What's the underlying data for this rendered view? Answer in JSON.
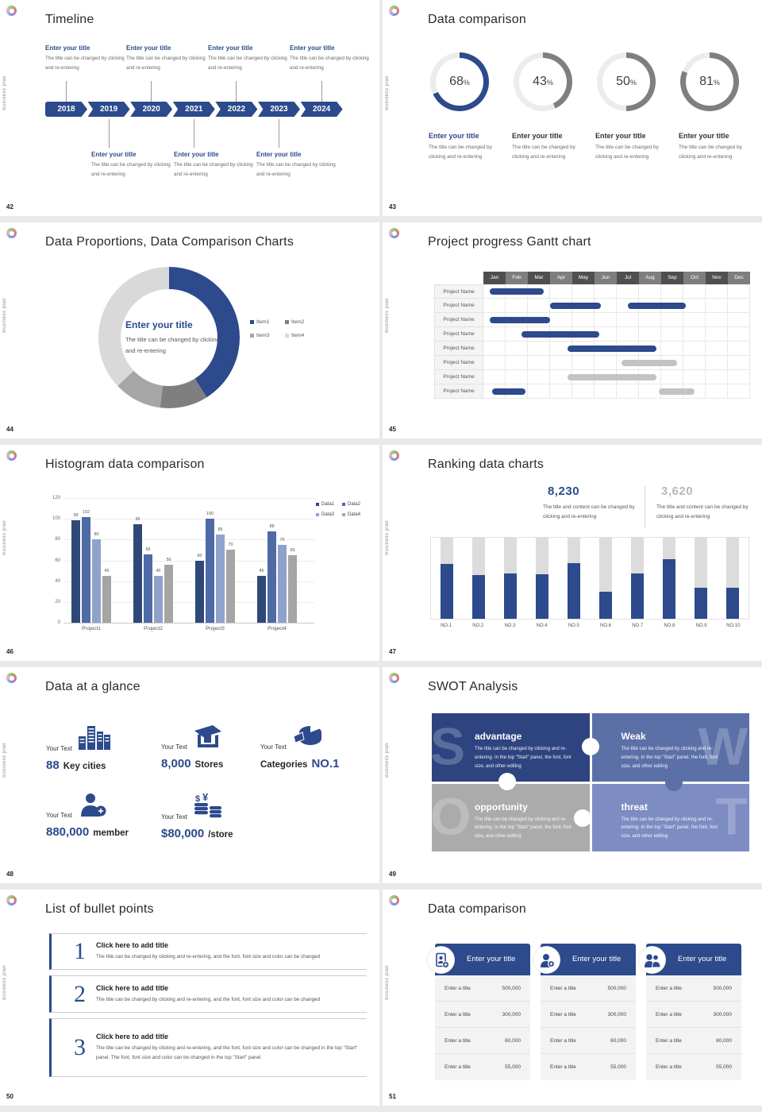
{
  "sidebar_text": "Business plan",
  "colors": {
    "primary": "#2C4A8C",
    "ring_gray": "#7F7F7F",
    "ring_track": "#ECECEC",
    "gantt_gray": "#C3C3C3",
    "rank_track": "#DCDCDC",
    "pie": [
      "#2C4A8C",
      "#7F7F7F",
      "#A6A6A6",
      "#D9D9D9"
    ],
    "histogram": [
      "#2E4977",
      "#4E6BA6",
      "#8FA2CB",
      "#A5A5A5"
    ],
    "swot": [
      "#2E4480",
      "#5C70A8",
      "#ABABAB",
      "#7D8CC2"
    ],
    "month_dark": "#4F4F4F",
    "month_light": "#7E7E7E"
  },
  "slides": {
    "timeline": {
      "number": "42",
      "title": "Timeline",
      "entry_title": "Enter your title",
      "entry_body": "The title can be changed by clicking and re-entering",
      "years": [
        "2018",
        "2019",
        "2020",
        "2021",
        "2022",
        "2023",
        "2024"
      ]
    },
    "donuts": {
      "number": "43",
      "title": "Data comparison",
      "entry_title": "Enter your title",
      "entry_body": "The title can be changed by clicking and re-entering",
      "percent_suffix": "%",
      "items": [
        {
          "percent": 68,
          "accent": true
        },
        {
          "percent": 43,
          "accent": false
        },
        {
          "percent": 50,
          "accent": false
        },
        {
          "percent": 81,
          "accent": false
        }
      ]
    },
    "proportions": {
      "number": "44",
      "title": "Data Proportions, Data Comparison Charts",
      "center_title": "Enter your title",
      "center_body": "The title can be changed by clicking and re-entering",
      "legend": [
        "Item1",
        "Item2",
        "Item3",
        "Item4"
      ],
      "segments": [
        41,
        11,
        11,
        37
      ]
    },
    "gantt": {
      "number": "45",
      "title": "Project progress Gantt chart",
      "months": [
        "Jan",
        "Feb",
        "Mar",
        "Apr",
        "May",
        "Jun",
        "Jul",
        "Aug",
        "Sep",
        "Oct",
        "Nov",
        "Dec"
      ],
      "row_label": "Project Name",
      "rows": [
        [
          {
            "s": 0.3,
            "e": 2.7,
            "c": "blue"
          }
        ],
        [
          {
            "s": 3.0,
            "e": 5.3,
            "c": "blue"
          },
          {
            "s": 6.5,
            "e": 9.1,
            "c": "blue"
          }
        ],
        [
          {
            "s": 0.3,
            "e": 3.0,
            "c": "blue"
          }
        ],
        [
          {
            "s": 1.7,
            "e": 5.2,
            "c": "blue"
          }
        ],
        [
          {
            "s": 3.8,
            "e": 7.8,
            "c": "blue"
          }
        ],
        [
          {
            "s": 6.2,
            "e": 8.7,
            "c": "gray"
          }
        ],
        [
          {
            "s": 3.8,
            "e": 7.8,
            "c": "gray"
          }
        ],
        [
          {
            "s": 0.4,
            "e": 1.9,
            "c": "blue"
          },
          {
            "s": 7.9,
            "e": 9.5,
            "c": "gray"
          }
        ]
      ]
    },
    "histogram": {
      "number": "46",
      "title": "Histogram data comparison",
      "categories": [
        "Project1",
        "Project2",
        "Project3",
        "Project4"
      ],
      "y_ticks": [
        "120",
        "100",
        "80",
        "60",
        "40",
        "20",
        "0"
      ],
      "series": [
        {
          "name": "Data1",
          "values": [
            99,
            95,
            60,
            45
          ]
        },
        {
          "name": "Data2",
          "values": [
            102,
            66,
            100,
            88
          ]
        },
        {
          "name": "Data3",
          "values": [
            80,
            45,
            85,
            75
          ]
        },
        {
          "name": "Data4",
          "values": [
            45,
            56,
            70,
            65
          ]
        }
      ]
    },
    "ranking": {
      "number": "47",
      "title": "Ranking data charts",
      "stats": [
        {
          "value": "8,230",
          "caption": "The title and content can be changed by clicking and re-entering"
        },
        {
          "value": "3,620",
          "caption": "The title and content can be changed by clicking and re-entering"
        }
      ],
      "categories": [
        "NO.1",
        "NO.2",
        "NO.3",
        "NO.4",
        "NO.5",
        "NO.6",
        "NO.7",
        "NO.8",
        "NO.9",
        "NO.10"
      ],
      "values": [
        68,
        54,
        56,
        55,
        69,
        33,
        56,
        74,
        38,
        38
      ]
    },
    "glance": {
      "number": "48",
      "title": "Data at a glance",
      "label": "Your Text",
      "stats": [
        {
          "icon": "city",
          "strong": "88",
          "rest": "Key cities",
          "strong_first": true
        },
        {
          "icon": "store",
          "strong": "8,000",
          "rest": "Stores",
          "strong_first": true
        },
        {
          "icon": "pie",
          "strong": "NO.1",
          "rest": "Categories",
          "strong_first": false
        },
        {
          "icon": "member",
          "strong": "880,000",
          "rest": "member",
          "strong_first": true
        },
        {
          "icon": "coins",
          "strong": "$80,000",
          "rest": "/store",
          "strong_first": true
        }
      ]
    },
    "swot": {
      "number": "49",
      "title": "SWOT Analysis",
      "body": "The title can be changed by clicking and re-entering. In the top \"Start\" panel, the font, font size, and other editing",
      "quads": [
        {
          "letter": "S",
          "heading": "advantage"
        },
        {
          "letter": "W",
          "heading": "Weak"
        },
        {
          "letter": "O",
          "heading": "opportunity"
        },
        {
          "letter": "T",
          "heading": "threat"
        }
      ]
    },
    "bullets": {
      "number": "50",
      "title": "List of bullet points",
      "items": [
        {
          "num": "1",
          "heading": "Click here to add title",
          "body": "The title can be changed by clicking and re-entering, and the font, font size and color can be changed"
        },
        {
          "num": "2",
          "heading": "Click here to add title",
          "body": "The title can be changed by clicking and re-entering, and the font, font size and color can be changed"
        },
        {
          "num": "3",
          "heading": "Click here to add title",
          "body": "The title can be changed by clicking and re-entering, and the font, font size and color can be changed in the top \"Start\" panel. The font, font size and color can be changed in the top \"Start\" panel."
        }
      ]
    },
    "cards": {
      "number": "51",
      "title": "Data comparison",
      "header": "Enter your title",
      "row_label": "Enter a title",
      "values": [
        "500,000",
        "300,000",
        "60,000",
        "55,000"
      ],
      "icons": [
        "device",
        "person",
        "people"
      ]
    }
  },
  "chart_data": [
    {
      "type": "pie",
      "title": "Data comparison",
      "note": "progress rings",
      "values": [
        68,
        43,
        50,
        81
      ],
      "unit": "%"
    },
    {
      "type": "pie",
      "title": "Data Proportions, Data Comparison Charts",
      "labels": [
        "Item1",
        "Item2",
        "Item3",
        "Item4"
      ],
      "values": [
        41,
        11,
        11,
        37
      ],
      "unit": "%",
      "legend_position": "right"
    },
    {
      "type": "table",
      "title": "Project progress Gantt chart",
      "columns": [
        "Jan",
        "Feb",
        "Mar",
        "Apr",
        "May",
        "Jun",
        "Jul",
        "Aug",
        "Sep",
        "Oct",
        "Nov",
        "Dec"
      ],
      "row_label": "Project Name",
      "bars_month_ranges": [
        [
          [
            0.3,
            2.7
          ]
        ],
        [
          [
            3.0,
            5.3
          ],
          [
            6.5,
            9.1
          ]
        ],
        [
          [
            0.3,
            3.0
          ]
        ],
        [
          [
            1.7,
            5.2
          ]
        ],
        [
          [
            3.8,
            7.8
          ]
        ],
        [
          [
            6.2,
            8.7
          ]
        ],
        [
          [
            3.8,
            7.8
          ]
        ],
        [
          [
            0.4,
            1.9
          ],
          [
            7.9,
            9.5
          ]
        ]
      ]
    },
    {
      "type": "bar",
      "title": "Histogram data comparison",
      "categories": [
        "Project1",
        "Project2",
        "Project3",
        "Project4"
      ],
      "series": [
        {
          "name": "Data1",
          "values": [
            99,
            95,
            60,
            45
          ]
        },
        {
          "name": "Data2",
          "values": [
            102,
            66,
            100,
            88
          ]
        },
        {
          "name": "Data3",
          "values": [
            80,
            45,
            85,
            75
          ]
        },
        {
          "name": "Data4",
          "values": [
            45,
            56,
            70,
            65
          ]
        }
      ],
      "ylim": [
        0,
        120
      ],
      "grid": true,
      "legend_position": "top-right"
    },
    {
      "type": "bar",
      "title": "Ranking data charts",
      "categories": [
        "NO.1",
        "NO.2",
        "NO.3",
        "NO.4",
        "NO.5",
        "NO.6",
        "NO.7",
        "NO.8",
        "NO.9",
        "NO.10"
      ],
      "values": [
        68,
        54,
        56,
        55,
        69,
        33,
        56,
        74,
        38,
        38
      ],
      "ylim": [
        0,
        100
      ],
      "annotations": [
        "8,230",
        "3,620"
      ]
    }
  ]
}
